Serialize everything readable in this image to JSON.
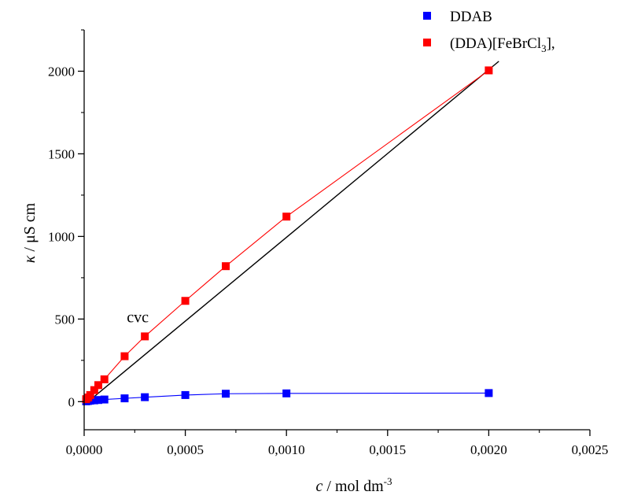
{
  "chart_data": {
    "type": "scatter",
    "title": "",
    "xlabel": {
      "var": "c",
      "rest": " / mol dm",
      "sup": "-3"
    },
    "ylabel": {
      "var": "κ",
      "rest": " / μS cm"
    },
    "xlim": [
      0,
      0.0025
    ],
    "ylim": [
      -170,
      2250
    ],
    "xticks": [
      0,
      0.0005,
      0.001,
      0.0015,
      0.002,
      0.0025
    ],
    "xtick_labels": [
      "0,0000",
      "0,0005",
      "0,0010",
      "0,0015",
      "0,0020",
      "0,0025"
    ],
    "yticks": [
      0,
      500,
      1000,
      1500,
      2000
    ],
    "ytick_labels": [
      "0",
      "500",
      "1000",
      "1500",
      "2000"
    ],
    "grid": false,
    "legend_position": "top-right",
    "legend": [
      {
        "label": "DDAB"
      },
      {
        "label_parts": {
          "pre": "(DDA)[FeBrCl",
          "sub": "3",
          "post": "],"
        }
      }
    ],
    "series": [
      {
        "name": "DDAB",
        "color": "#0000ff",
        "marker": "square",
        "x": [
          1e-05,
          2e-05,
          3e-05,
          5e-05,
          7e-05,
          0.0001,
          0.0002,
          0.0003,
          0.0005,
          0.0007,
          0.001,
          0.002
        ],
        "y": [
          2,
          4,
          6,
          8,
          10,
          13,
          20,
          27,
          40,
          48,
          50,
          52
        ]
      },
      {
        "name": "(DDA)[FeBrCl3],",
        "color": "#ff0000",
        "marker": "square",
        "x": [
          1e-05,
          2e-05,
          3e-05,
          5e-05,
          7e-05,
          0.0001,
          0.0002,
          0.0003,
          0.0005,
          0.0007,
          0.001,
          0.002
        ],
        "y": [
          15,
          25,
          40,
          70,
          100,
          135,
          275,
          395,
          610,
          820,
          1120,
          2005
        ]
      }
    ],
    "fit_line": {
      "color": "#000000",
      "x": [
        0,
        0.00205
      ],
      "y": [
        -20,
        2060
      ]
    },
    "annotations": [
      {
        "text": "cvc",
        "x": 0.000265,
        "y": 480
      }
    ],
    "colors": {
      "axis": "#000000",
      "ddab": "#0000ff",
      "ddda": "#ff0000",
      "fit": "#000000"
    }
  }
}
